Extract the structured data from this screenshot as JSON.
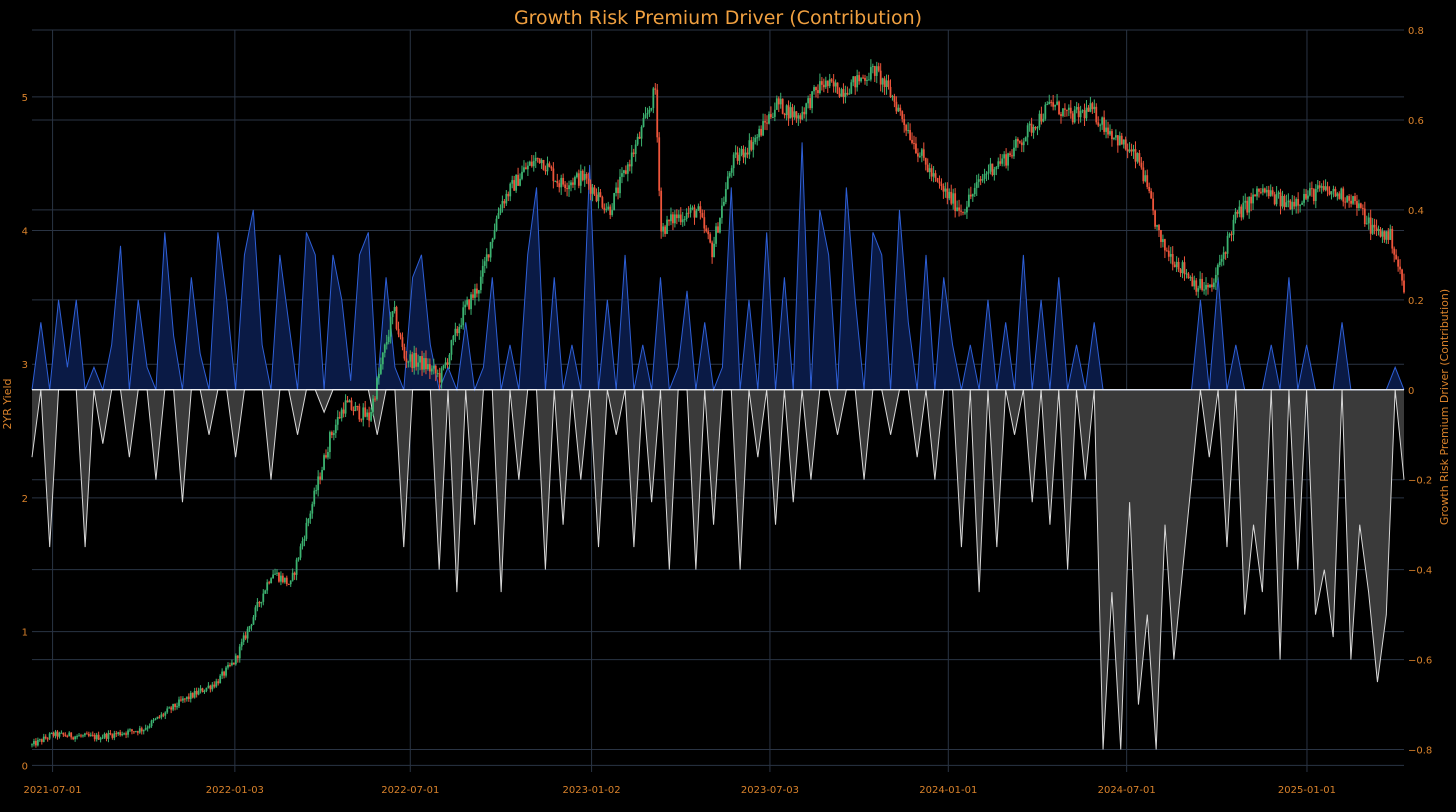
{
  "chart_data": {
    "type": "line",
    "title": "Growth Risk Premium Driver (Contribution)",
    "y_left_label": "2YR Yield",
    "y_right_label": "Growth Risk Premium Driver (Contribution)",
    "x_tick_labels": [
      "2021-07-01",
      "2022-01-03",
      "2022-07-01",
      "2023-01-02",
      "2023-07-03",
      "2024-01-01",
      "2024-07-01",
      "2025-01-01"
    ],
    "x_ticks": [
      "2021-07-01",
      "2022-01-03",
      "2022-07-01",
      "2023-01-02",
      "2023-07-03",
      "2024-01-01",
      "2024-07-01",
      "2025-01-01"
    ],
    "x_range": [
      "2021-06-10",
      "2025-04-10"
    ],
    "y_left_ticks": [
      0,
      1,
      2,
      3,
      4,
      5
    ],
    "y_left_range": [
      -0.05,
      5.5
    ],
    "y_right_ticks": [
      0.8,
      0.6,
      0.4,
      0.2,
      0,
      -0.2,
      -0.4,
      -0.6,
      -0.8
    ],
    "y_right_tick_labels": [
      "0.8",
      "0.6",
      "0.4",
      "0.2",
      "0",
      "−0.2",
      "−0.4",
      "−0.6",
      "−0.8"
    ],
    "y_right_range": [
      -0.85,
      0.8
    ],
    "grid": true,
    "colors": {
      "background": "#000000",
      "grid": "#2a3444",
      "up": "#3cb371",
      "down": "#ef553b",
      "positive_line": "#2e5fd6",
      "positive_fill": "#0a1a45",
      "negative_line": "#d8d8d8",
      "negative_fill": "#3a3a3a",
      "zero_line": "#ffffff",
      "text": "#d9822b",
      "title": "#f0a040"
    },
    "series": [
      {
        "name": "2YR Yield",
        "kind": "candlestick",
        "axis": "left",
        "points": [
          [
            "2021-06-10",
            0.15
          ],
          [
            "2021-07-01",
            0.23
          ],
          [
            "2021-08-15",
            0.21
          ],
          [
            "2021-10-01",
            0.27
          ],
          [
            "2021-11-10",
            0.48
          ],
          [
            "2021-12-15",
            0.62
          ],
          [
            "2022-01-03",
            0.78
          ],
          [
            "2022-02-10",
            1.45
          ],
          [
            "2022-03-01",
            1.35
          ],
          [
            "2022-04-10",
            2.45
          ],
          [
            "2022-04-25",
            2.7
          ],
          [
            "2022-05-20",
            2.6
          ],
          [
            "2022-06-14",
            3.4
          ],
          [
            "2022-06-25",
            3.05
          ],
          [
            "2022-07-15",
            3.0
          ],
          [
            "2022-08-01",
            2.9
          ],
          [
            "2022-08-25",
            3.4
          ],
          [
            "2022-09-10",
            3.6
          ],
          [
            "2022-10-01",
            4.2
          ],
          [
            "2022-10-25",
            4.45
          ],
          [
            "2022-11-10",
            4.55
          ],
          [
            "2022-12-01",
            4.35
          ],
          [
            "2022-12-25",
            4.4
          ],
          [
            "2023-01-20",
            4.15
          ],
          [
            "2023-02-20",
            4.7
          ],
          [
            "2023-03-08",
            5.05
          ],
          [
            "2023-03-14",
            4.0
          ],
          [
            "2023-03-28",
            4.1
          ],
          [
            "2023-04-20",
            4.15
          ],
          [
            "2023-05-05",
            3.85
          ],
          [
            "2023-05-25",
            4.5
          ],
          [
            "2023-06-20",
            4.7
          ],
          [
            "2023-07-10",
            4.95
          ],
          [
            "2023-08-01",
            4.85
          ],
          [
            "2023-08-25",
            5.1
          ],
          [
            "2023-09-15",
            5.05
          ],
          [
            "2023-10-18",
            5.2
          ],
          [
            "2023-11-05",
            5.0
          ],
          [
            "2023-12-01",
            4.6
          ],
          [
            "2023-12-20",
            4.35
          ],
          [
            "2024-01-15",
            4.15
          ],
          [
            "2024-02-10",
            4.45
          ],
          [
            "2024-03-01",
            4.55
          ],
          [
            "2024-04-15",
            4.95
          ],
          [
            "2024-05-05",
            4.85
          ],
          [
            "2024-05-25",
            4.9
          ],
          [
            "2024-06-20",
            4.7
          ],
          [
            "2024-07-15",
            4.5
          ],
          [
            "2024-08-05",
            3.9
          ],
          [
            "2024-09-10",
            3.6
          ],
          [
            "2024-09-25",
            3.55
          ],
          [
            "2024-10-20",
            4.1
          ],
          [
            "2024-11-15",
            4.3
          ],
          [
            "2024-12-10",
            4.2
          ],
          [
            "2025-01-15",
            4.3
          ],
          [
            "2025-02-15",
            4.25
          ],
          [
            "2025-03-10",
            4.0
          ],
          [
            "2025-03-28",
            3.95
          ],
          [
            "2025-04-10",
            3.55
          ]
        ]
      },
      {
        "name": "Growth Risk Premium Driver (Contribution)",
        "kind": "area",
        "axis": "right",
        "x_start": "2021-06-10",
        "x_end": "2025-04-10",
        "values": [
          -0.15,
          0.15,
          -0.35,
          0.2,
          0.05,
          0.2,
          -0.35,
          0.05,
          -0.12,
          0.1,
          0.32,
          -0.15,
          0.2,
          0.05,
          -0.2,
          0.35,
          0.12,
          -0.25,
          0.25,
          0.08,
          -0.1,
          0.35,
          0.2,
          -0.15,
          0.3,
          0.4,
          0.1,
          -0.2,
          0.3,
          0.15,
          -0.1,
          0.35,
          0.3,
          -0.05,
          0.3,
          0.2,
          0.02,
          0.3,
          0.35,
          -0.1,
          0.25,
          0.05,
          -0.35,
          0.25,
          0.3,
          0.1,
          -0.4,
          0.05,
          -0.45,
          0.15,
          -0.3,
          0.05,
          0.25,
          -0.45,
          0.1,
          -0.2,
          0.3,
          0.45,
          -0.4,
          0.25,
          -0.3,
          0.1,
          -0.2,
          0.5,
          -0.35,
          0.2,
          -0.1,
          0.3,
          -0.35,
          0.1,
          -0.25,
          0.25,
          -0.4,
          0.05,
          0.22,
          -0.4,
          0.15,
          -0.3,
          0.05,
          0.45,
          -0.4,
          0.2,
          -0.15,
          0.35,
          -0.3,
          0.25,
          -0.25,
          0.55,
          -0.2,
          0.4,
          0.3,
          -0.1,
          0.45,
          0.2,
          -0.2,
          0.35,
          0.3,
          -0.1,
          0.4,
          0.15,
          -0.15,
          0.3,
          -0.2,
          0.25,
          0.1,
          -0.35,
          0.1,
          -0.45,
          0.2,
          -0.35,
          0.15,
          -0.1,
          0.3,
          -0.25,
          0.2,
          -0.3,
          0.25,
          -0.4,
          0.1,
          -0.2,
          0.15,
          -0.8,
          -0.45,
          -0.8,
          -0.25,
          -0.7,
          -0.5,
          -0.8,
          -0.3,
          -0.6,
          -0.4,
          -0.2,
          0.2,
          -0.15,
          0.25,
          -0.35,
          0.1,
          -0.5,
          -0.3,
          -0.45,
          0.1,
          -0.6,
          0.25,
          -0.4,
          0.1,
          -0.5,
          -0.4,
          -0.55,
          0.15,
          -0.6,
          -0.3,
          -0.45,
          -0.65,
          -0.5,
          0.05,
          -0.2
        ]
      }
    ]
  }
}
